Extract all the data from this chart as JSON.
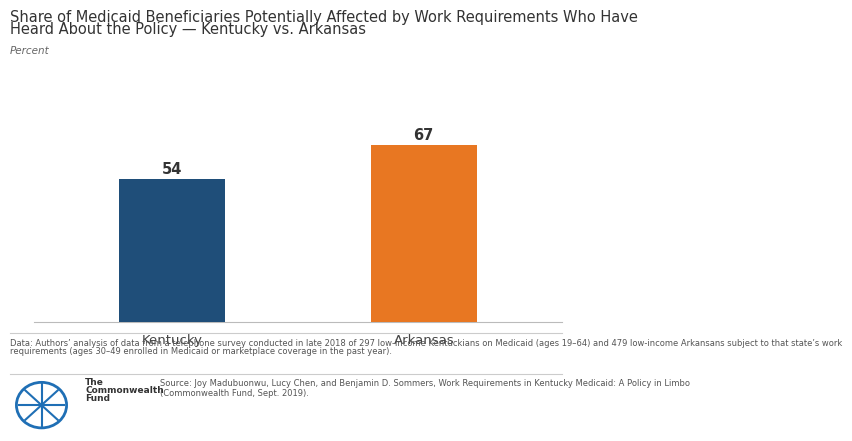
{
  "title_line1": "Share of Medicaid Beneficiaries Potentially Affected by Work Requirements Who Have",
  "title_line2": "Heard About the Policy — Kentucky vs. Arkansas",
  "ylabel": "Percent",
  "categories": [
    "Kentucky",
    "Arkansas"
  ],
  "values": [
    54,
    67
  ],
  "bar_colors": [
    "#1f4e79",
    "#e87722"
  ],
  "value_labels": [
    "54",
    "67"
  ],
  "ylim": [
    0,
    85
  ],
  "footnote1": "Data: Authors’ analysis of data from a telephone survey conducted in late 2018 of 297 low-income Kentuckians on Medicaid (ages 19–64) and 479 low-income Arkansans subject to that state’s work",
  "footnote2": "requirements (ages 30–49 enrolled in Medicaid or marketplace coverage in the past year).",
  "source_line1": "Source: Joy Madubuonwu, Lucy Chen, and Benjamin D. Sommers, Work Requirements in Kentucky Medicaid: A Policy in Limbo",
  "source_line2": "(Commonwealth Fund, Sept. 2019).",
  "org_line1": "The",
  "org_line2": "Commonwealth",
  "org_line3": "Fund",
  "background_color": "#ffffff",
  "title_fontsize": 10.5,
  "label_fontsize": 9.5,
  "bar_label_fontsize": 10.5,
  "footnote_fontsize": 6.0,
  "source_fontsize": 6.0,
  "bar_width": 0.42
}
